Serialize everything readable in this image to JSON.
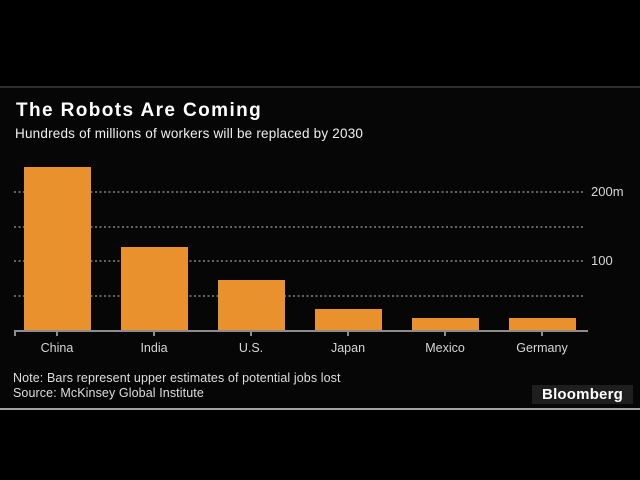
{
  "header": {
    "title": "The Robots Are Coming",
    "subtitle": "Hundreds of millions of workers will be replaced by 2030"
  },
  "footer": {
    "note": "Note: Bars represent upper estimates of potential jobs lost",
    "source": "Source: McKinsey Global Institute",
    "brand": "Bloomberg"
  },
  "colors": {
    "background": "#000000",
    "bar": "#E8912D",
    "gridline": "#646464",
    "axis": "#8c8c8c",
    "text": "#d6d6d6"
  },
  "y_axis": {
    "labels": [
      {
        "value": 200,
        "text": "200m"
      },
      {
        "value": 100,
        "text": "100"
      }
    ]
  },
  "chart_data": {
    "type": "bar",
    "title": "The Robots Are Coming",
    "subtitle": "Hundreds of millions of workers will be replaced by 2030",
    "categories": [
      "China",
      "India",
      "U.S.",
      "Japan",
      "Mexico",
      "Germany"
    ],
    "values": [
      236,
      120,
      73,
      30,
      18,
      17
    ],
    "unit": "millions of workers",
    "xlabel": "",
    "ylabel": "",
    "ylim": [
      0,
      240
    ],
    "gridline_values": [
      50,
      100,
      150,
      200
    ],
    "grid": "dotted-horizontal",
    "ytick_labels_visible": [
      "200m",
      "100"
    ],
    "legend_position": "none",
    "bar_color": "#E8912D",
    "note": "Note: Bars represent upper estimates of potential jobs lost",
    "source": "Source: McKinsey Global Institute"
  }
}
